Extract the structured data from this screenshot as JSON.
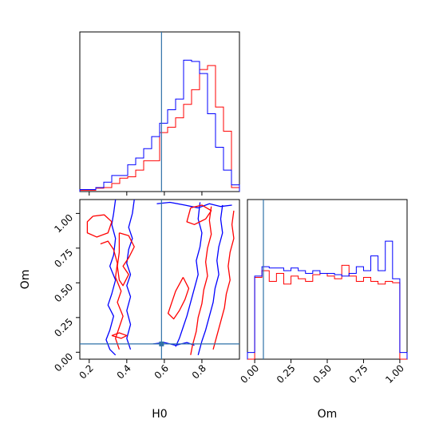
{
  "chart_data": {
    "type": "corner",
    "parameters": [
      "H0",
      "Om"
    ],
    "truths": {
      "H0": 0.585,
      "Om": 0.06
    },
    "truth_color": "#2f72a8",
    "series_colors": {
      "red": "#ff0000",
      "blue": "#0000ff"
    },
    "panels": [
      {
        "id": "hist_H0",
        "type": "step-histogram",
        "xlim": [
          0.15,
          1.0
        ],
        "x_ticks": [
          0.2,
          0.4,
          0.6,
          0.8
        ],
        "bin_edges": [
          0.15,
          0.1925,
          0.235,
          0.2775,
          0.32,
          0.3625,
          0.405,
          0.4475,
          0.49,
          0.5325,
          0.575,
          0.6175,
          0.66,
          0.7025,
          0.745,
          0.7875,
          0.83,
          0.8725,
          0.915,
          0.9575,
          1.0
        ],
        "series": [
          {
            "color_key": "red",
            "heights": [
              0.01,
              0.01,
              0.025,
              0.03,
              0.06,
              0.1,
              0.11,
              0.16,
              0.23,
              0.23,
              0.44,
              0.48,
              0.55,
              0.65,
              0.76,
              0.91,
              0.94,
              0.63,
              0.45,
              0.03
            ]
          },
          {
            "color_key": "blue",
            "heights": [
              0.015,
              0.015,
              0.03,
              0.07,
              0.12,
              0.12,
              0.2,
              0.25,
              0.32,
              0.41,
              0.51,
              0.61,
              0.69,
              0.98,
              0.97,
              0.88,
              0.58,
              0.33,
              0.16,
              0.05
            ]
          }
        ]
      },
      {
        "id": "contour_H0_Om",
        "type": "contour",
        "xlim": [
          0.15,
          1.0
        ],
        "ylim": [
          -0.05,
          1.1
        ],
        "x_ticks": [
          0.2,
          0.4,
          0.6,
          0.8
        ],
        "y_ticks": [
          0.0,
          0.25,
          0.5,
          0.75,
          1.0
        ],
        "x_tick_labels": [
          "0.2",
          "0.4",
          "0.6",
          "0.8"
        ],
        "y_tick_labels": [
          "0.00",
          "0.25",
          "0.50",
          "0.75",
          "1.00"
        ],
        "xlabel": "H0",
        "ylabel": "Om",
        "contours": [
          {
            "color_key": "blue",
            "points": [
              [
                0.34,
                1.1
              ],
              [
                0.33,
                1.0
              ],
              [
                0.32,
                0.92
              ],
              [
                0.34,
                0.82
              ],
              [
                0.33,
                0.7
              ],
              [
                0.31,
                0.62
              ],
              [
                0.34,
                0.52
              ],
              [
                0.32,
                0.42
              ],
              [
                0.3,
                0.34
              ],
              [
                0.33,
                0.26
              ],
              [
                0.31,
                0.16
              ],
              [
                0.29,
                0.09
              ],
              [
                0.31,
                0.02
              ],
              [
                0.34,
                -0.02
              ]
            ]
          },
          {
            "color_key": "blue",
            "points": [
              [
                0.44,
                1.1
              ],
              [
                0.43,
                1.0
              ],
              [
                0.41,
                0.9
              ],
              [
                0.43,
                0.82
              ],
              [
                0.41,
                0.74
              ],
              [
                0.4,
                0.64
              ],
              [
                0.42,
                0.56
              ],
              [
                0.4,
                0.48
              ],
              [
                0.42,
                0.4
              ],
              [
                0.4,
                0.3
              ],
              [
                0.42,
                0.2
              ],
              [
                0.4,
                0.1
              ],
              [
                0.42,
                0.02
              ]
            ]
          },
          {
            "color_key": "blue",
            "points": [
              [
                0.56,
                1.07
              ],
              [
                0.63,
                1.08
              ],
              [
                0.71,
                1.06
              ],
              [
                0.78,
                1.04
              ],
              [
                0.84,
                1.07
              ],
              [
                0.9,
                1.05
              ],
              [
                0.96,
                1.06
              ]
            ]
          },
          {
            "color_key": "blue",
            "points": [
              [
                0.79,
                1.08
              ],
              [
                0.78,
                0.96
              ],
              [
                0.8,
                0.86
              ],
              [
                0.79,
                0.76
              ],
              [
                0.77,
                0.66
              ],
              [
                0.78,
                0.56
              ],
              [
                0.76,
                0.46
              ],
              [
                0.74,
                0.36
              ],
              [
                0.72,
                0.26
              ],
              [
                0.7,
                0.18
              ],
              [
                0.68,
                0.1
              ],
              [
                0.66,
                0.04
              ]
            ]
          },
          {
            "color_key": "blue",
            "points": [
              [
                0.91,
                1.06
              ],
              [
                0.9,
                0.96
              ],
              [
                0.91,
                0.86
              ],
              [
                0.89,
                0.76
              ],
              [
                0.88,
                0.66
              ],
              [
                0.89,
                0.56
              ],
              [
                0.87,
                0.46
              ],
              [
                0.86,
                0.36
              ],
              [
                0.84,
                0.26
              ],
              [
                0.82,
                0.16
              ],
              [
                0.8,
                0.08
              ],
              [
                0.78,
                -0.02
              ]
            ]
          },
          {
            "color_key": "blue",
            "points": [
              [
                0.54,
                0.06
              ],
              [
                0.6,
                0.07
              ],
              [
                0.66,
                0.05
              ],
              [
                0.72,
                0.07
              ],
              [
                0.76,
                0.05
              ]
            ]
          },
          {
            "color_key": "red",
            "points": [
              [
                0.22,
                0.98
              ],
              [
                0.28,
                0.99
              ],
              [
                0.32,
                0.94
              ],
              [
                0.3,
                0.86
              ],
              [
                0.24,
                0.83
              ],
              [
                0.19,
                0.86
              ],
              [
                0.19,
                0.94
              ],
              [
                0.22,
                0.98
              ]
            ]
          },
          {
            "color_key": "red",
            "points": [
              [
                0.26,
                0.78
              ],
              [
                0.3,
                0.8
              ],
              [
                0.33,
                0.74
              ],
              [
                0.35,
                0.64
              ],
              [
                0.34,
                0.54
              ],
              [
                0.37,
                0.44
              ],
              [
                0.35,
                0.36
              ],
              [
                0.38,
                0.26
              ],
              [
                0.36,
                0.18
              ],
              [
                0.34,
                0.1
              ],
              [
                0.36,
                0.02
              ]
            ]
          },
          {
            "color_key": "red",
            "points": [
              [
                0.36,
                0.86
              ],
              [
                0.41,
                0.84
              ],
              [
                0.44,
                0.76
              ],
              [
                0.41,
                0.68
              ],
              [
                0.38,
                0.62
              ],
              [
                0.41,
                0.56
              ],
              [
                0.38,
                0.48
              ],
              [
                0.36,
                0.52
              ],
              [
                0.35,
                0.62
              ],
              [
                0.36,
                0.72
              ],
              [
                0.36,
                0.86
              ]
            ]
          },
          {
            "color_key": "red",
            "points": [
              [
                0.74,
                1.04
              ],
              [
                0.8,
                1.06
              ],
              [
                0.85,
                1.02
              ],
              [
                0.82,
                0.96
              ],
              [
                0.76,
                0.92
              ],
              [
                0.72,
                0.94
              ],
              [
                0.74,
                1.04
              ]
            ]
          },
          {
            "color_key": "red",
            "points": [
              [
                0.7,
                0.54
              ],
              [
                0.73,
                0.46
              ],
              [
                0.71,
                0.38
              ],
              [
                0.68,
                0.3
              ],
              [
                0.65,
                0.24
              ],
              [
                0.62,
                0.28
              ],
              [
                0.64,
                0.36
              ],
              [
                0.66,
                0.44
              ],
              [
                0.7,
                0.54
              ]
            ]
          },
          {
            "color_key": "red",
            "points": [
              [
                0.85,
                1.05
              ],
              [
                0.84,
                0.95
              ],
              [
                0.85,
                0.85
              ],
              [
                0.83,
                0.75
              ],
              [
                0.82,
                0.65
              ],
              [
                0.83,
                0.55
              ],
              [
                0.81,
                0.45
              ],
              [
                0.8,
                0.35
              ],
              [
                0.78,
                0.25
              ],
              [
                0.77,
                0.15
              ],
              [
                0.75,
                0.05
              ],
              [
                0.74,
                -0.02
              ]
            ]
          },
          {
            "color_key": "red",
            "points": [
              [
                0.97,
                1.02
              ],
              [
                0.96,
                0.92
              ],
              [
                0.97,
                0.82
              ],
              [
                0.95,
                0.72
              ],
              [
                0.94,
                0.62
              ],
              [
                0.95,
                0.52
              ],
              [
                0.93,
                0.42
              ],
              [
                0.92,
                0.32
              ],
              [
                0.9,
                0.22
              ],
              [
                0.88,
                0.12
              ],
              [
                0.86,
                0.02
              ]
            ]
          },
          {
            "color_key": "red",
            "points": [
              [
                0.32,
                0.12
              ],
              [
                0.36,
                0.14
              ],
              [
                0.4,
                0.12
              ],
              [
                0.37,
                0.1
              ],
              [
                0.32,
                0.12
              ]
            ]
          }
        ]
      },
      {
        "id": "hist_Om",
        "type": "step-histogram",
        "xlim": [
          -0.05,
          1.05
        ],
        "x_ticks": [
          0.0,
          0.25,
          0.5,
          0.75,
          1.0
        ],
        "x_tick_labels": [
          "0.00",
          "0.25",
          "0.50",
          "0.75",
          "1.00"
        ],
        "xlabel": "Om",
        "bin_edges": [
          -0.05,
          0.0,
          0.05,
          0.1,
          0.15,
          0.2,
          0.25,
          0.3,
          0.35,
          0.4,
          0.45,
          0.5,
          0.55,
          0.6,
          0.65,
          0.7,
          0.75,
          0.8,
          0.85,
          0.9,
          0.95,
          1.0,
          1.05
        ],
        "series": [
          {
            "color_key": "red",
            "heights": [
              0.0,
              0.61,
              0.66,
              0.58,
              0.64,
              0.56,
              0.62,
              0.6,
              0.58,
              0.63,
              0.64,
              0.62,
              0.6,
              0.7,
              0.62,
              0.58,
              0.61,
              0.58,
              0.56,
              0.58,
              0.57,
              0.0
            ]
          },
          {
            "color_key": "blue",
            "heights": [
              0.05,
              0.62,
              0.69,
              0.68,
              0.68,
              0.66,
              0.68,
              0.66,
              0.64,
              0.66,
              0.64,
              0.64,
              0.63,
              0.62,
              0.64,
              0.69,
              0.66,
              0.77,
              0.66,
              0.88,
              0.6,
              0.05
            ]
          }
        ]
      }
    ]
  }
}
